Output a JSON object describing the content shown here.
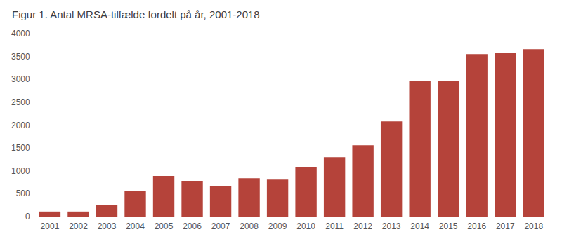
{
  "chart_data": {
    "type": "bar",
    "title": "Figur 1. Antal MRSA-tilfælde fordelt på år, 2001-2018",
    "categories": [
      "2001",
      "2002",
      "2003",
      "2004",
      "2005",
      "2006",
      "2007",
      "2008",
      "2009",
      "2010",
      "2011",
      "2012",
      "2013",
      "2014",
      "2015",
      "2016",
      "2017",
      "2018"
    ],
    "values": [
      110,
      110,
      250,
      555,
      890,
      780,
      660,
      840,
      810,
      1090,
      1300,
      1560,
      2080,
      2970,
      2970,
      3550,
      3570,
      3660
    ],
    "color": "#b5433a",
    "ylim": [
      0,
      4000
    ],
    "yticks": [
      0,
      500,
      1000,
      1500,
      2000,
      2500,
      3000,
      3500,
      4000
    ],
    "grid": false
  }
}
